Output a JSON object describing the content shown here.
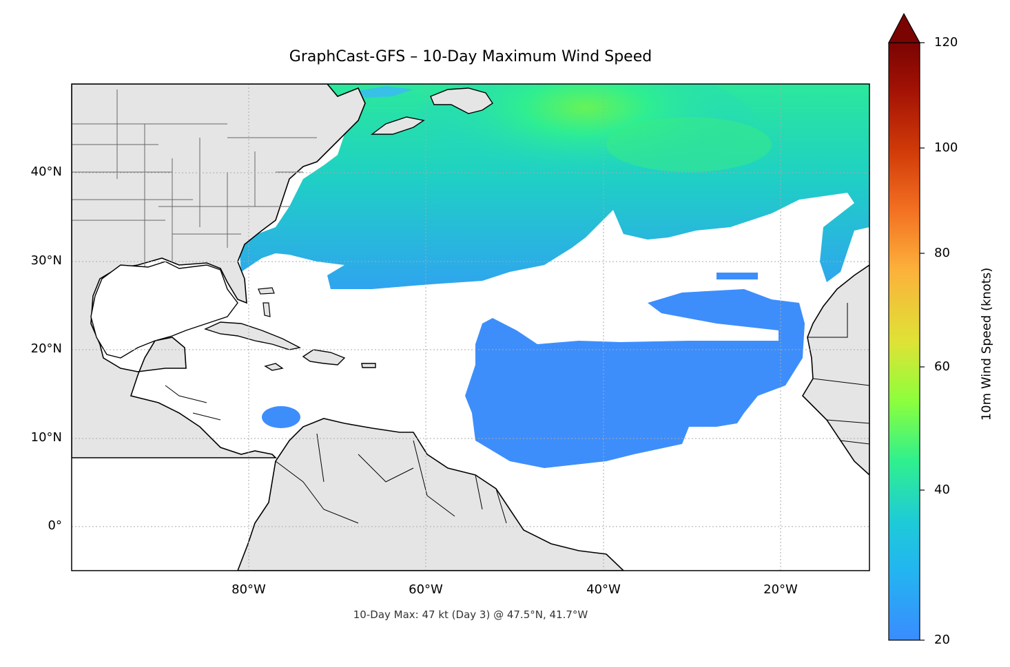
{
  "map": {
    "title": "GraphCast-GFS – 10-Day Maximum Wind Speed",
    "footer": "10-Day Max: 47 kt (Day 3) @ 47.5°N, 41.7°W",
    "lat_labels": [
      "40°N",
      "30°N",
      "20°N",
      "10°N",
      "0°"
    ],
    "lon_labels": [
      "80°W",
      "60°W",
      "40°W",
      "20°W"
    ],
    "extent": {
      "lon_min": -100,
      "lon_max": -10,
      "lat_min": -5,
      "lat_max": 50
    },
    "land_color": "#e5e5e5",
    "ocean_color": "#ffffff",
    "gridlines": true
  },
  "colorbar": {
    "label": "10m Wind Speed (knots)",
    "ticks": [
      "120",
      "100",
      "80",
      "60",
      "40",
      "20"
    ],
    "range": [
      20,
      120
    ],
    "extend": "max",
    "colors": [
      "#3a8cff",
      "#1ecbd6",
      "#2ff08e",
      "#8cff3c",
      "#dfe236",
      "#fcb13b",
      "#f37022",
      "#d03a08",
      "#a31205",
      "#7a0402"
    ]
  }
}
